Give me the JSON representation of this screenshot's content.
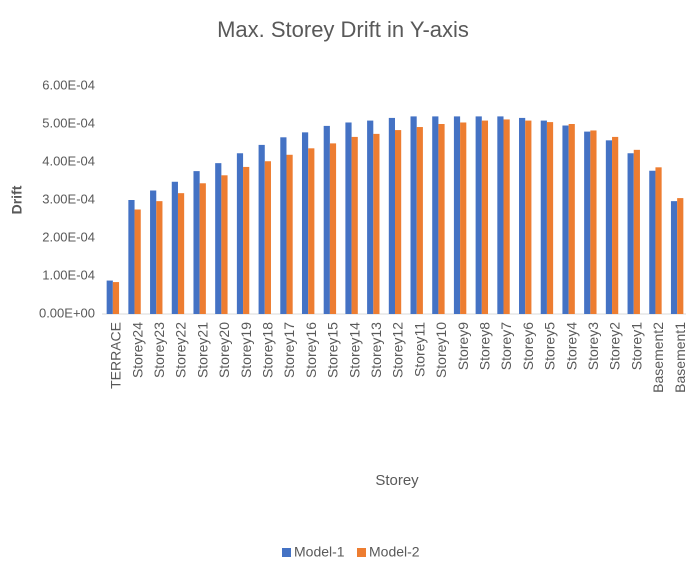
{
  "chart_data": {
    "type": "bar",
    "title": "Max. Storey Drift in Y-axis",
    "x_label": "Storey",
    "y_label": "Drift",
    "categories": [
      "TERRACE",
      "Storey24",
      "Storey23",
      "Storey22",
      "Storey21",
      "Storey20",
      "Storey19",
      "Storey18",
      "Storey17",
      "Storey16",
      "Storey15",
      "Storey14",
      "Storey13",
      "Storey12",
      "Storey11",
      "Storey10",
      "Storey9",
      "Storey8",
      "Storey7",
      "Storey6",
      "Storey5",
      "Storey4",
      "Storey3",
      "Storey2",
      "Storey1",
      "Basement2",
      "Basement1"
    ],
    "series": [
      {
        "name": "Model-1",
        "color": "#4472c4",
        "values": [
          8.8e-05,
          0.0003,
          0.000325,
          0.000348,
          0.000376,
          0.000397,
          0.000423,
          0.000445,
          0.000465,
          0.000478,
          0.000495,
          0.000504,
          0.000509,
          0.000516,
          0.00052,
          0.00052,
          0.00052,
          0.00052,
          0.00052,
          0.000516,
          0.000509,
          0.000496,
          0.00048,
          0.000457,
          0.000423,
          0.000377,
          0.000297
        ]
      },
      {
        "name": "Model-2",
        "color": "#ed7d31",
        "values": [
          8.4e-05,
          0.000275,
          0.000297,
          0.000318,
          0.000344,
          0.000365,
          0.000387,
          0.000402,
          0.000419,
          0.000436,
          0.000449,
          0.000466,
          0.000474,
          0.000484,
          0.000492,
          0.0005,
          0.000504,
          0.000509,
          0.000512,
          0.000509,
          0.000505,
          0.0005,
          0.000483,
          0.000466,
          0.000432,
          0.000386,
          0.000305
        ]
      }
    ],
    "ylim": [
      0,
      0.0006
    ],
    "yticks": [
      {
        "value": 0,
        "label": "0.00E+00"
      },
      {
        "value": 0.0001,
        "label": "1.00E-04"
      },
      {
        "value": 0.0002,
        "label": "2.00E-04"
      },
      {
        "value": 0.0003,
        "label": "3.00E-04"
      },
      {
        "value": 0.0004,
        "label": "4.00E-04"
      },
      {
        "value": 0.0005,
        "label": "5.00E-04"
      },
      {
        "value": 0.0006,
        "label": "6.00E-04"
      }
    ],
    "grid": false,
    "legend": "bottom"
  }
}
